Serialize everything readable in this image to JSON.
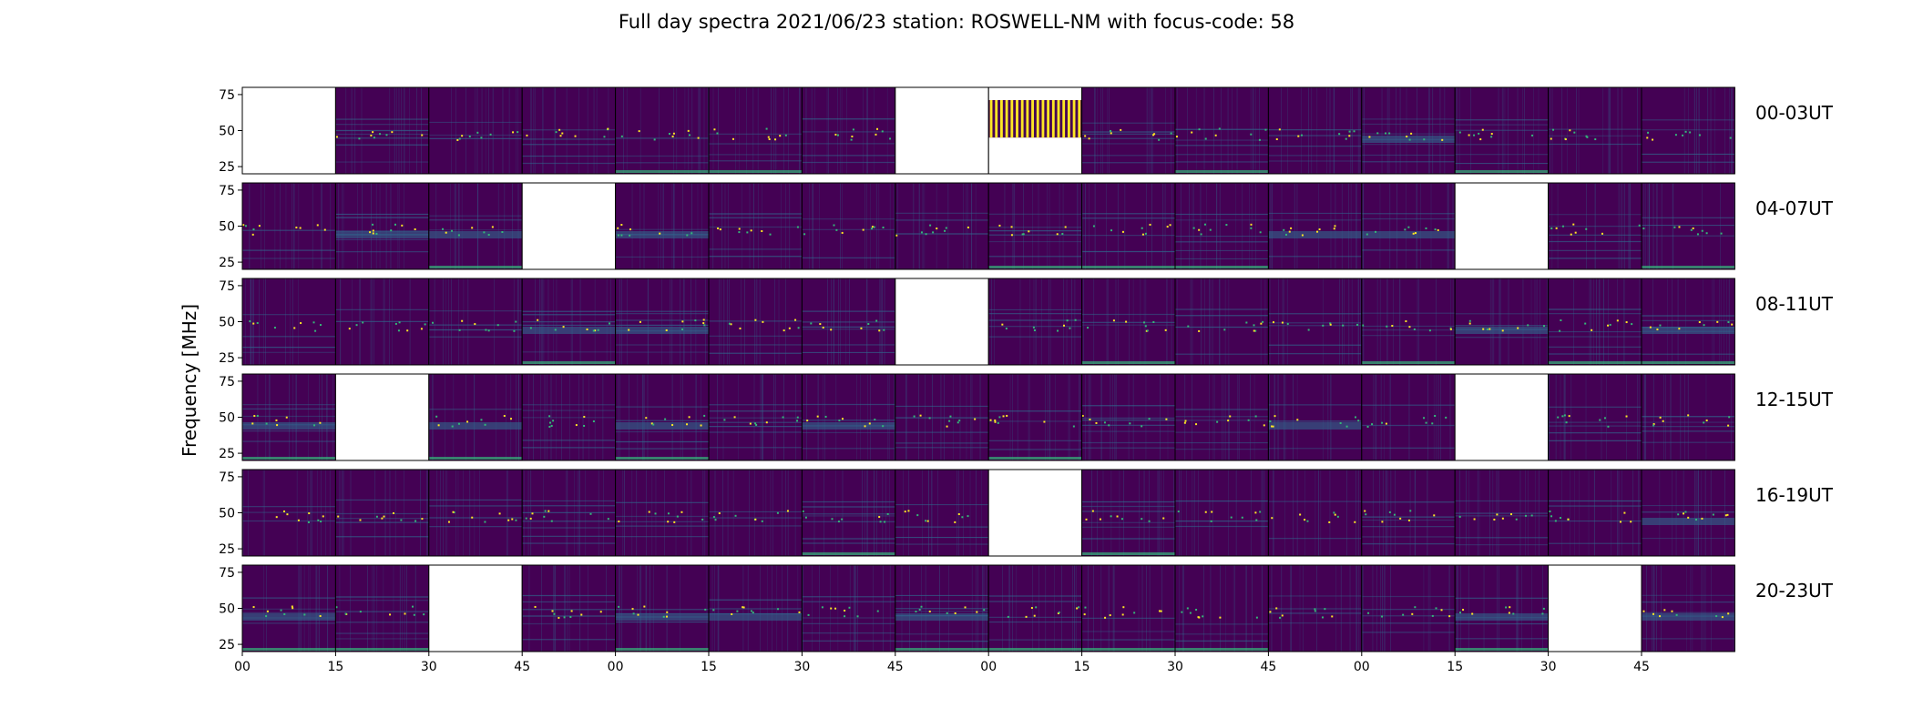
{
  "chart_data": {
    "type": "heatmap",
    "title": "Full day spectra 2021/06/23 station: ROSWELL-NM with focus-code: 58",
    "ylabel": "Frequency [MHz]",
    "y_ticks": [
      "75",
      "50",
      "25"
    ],
    "x_ticks": [
      "00",
      "15",
      "30",
      "45",
      "00",
      "15",
      "30",
      "45",
      "00",
      "15",
      "30",
      "45",
      "00",
      "15",
      "30",
      "45"
    ],
    "colormap": "viridis",
    "colors": {
      "background": "#440154",
      "mid": "#31688e",
      "teal": "#35b779",
      "high": "#fde725"
    },
    "rows": [
      {
        "label": "00-03UT",
        "panels": [
          "missing",
          "data",
          "data",
          "data",
          "data",
          "data",
          "data",
          "missing",
          "striped",
          "data",
          "data",
          "data",
          "data",
          "data",
          "data",
          "data"
        ]
      },
      {
        "label": "04-07UT",
        "panels": [
          "data",
          "data",
          "data",
          "missing",
          "data",
          "data",
          "data",
          "data",
          "data",
          "data",
          "data",
          "data",
          "data",
          "missing",
          "data",
          "data"
        ]
      },
      {
        "label": "08-11UT",
        "panels": [
          "data",
          "data",
          "data",
          "data",
          "data",
          "data",
          "data",
          "missing",
          "data",
          "data",
          "data",
          "data",
          "data",
          "data",
          "data",
          "data"
        ]
      },
      {
        "label": "12-15UT",
        "panels": [
          "data",
          "missing",
          "data",
          "data",
          "data",
          "data",
          "data",
          "data",
          "data",
          "data",
          "data",
          "data",
          "data",
          "missing",
          "data",
          "data"
        ]
      },
      {
        "label": "16-19UT",
        "panels": [
          "data",
          "data",
          "data",
          "data",
          "data",
          "data",
          "data",
          "data",
          "missing",
          "data",
          "data",
          "data",
          "data",
          "data",
          "data",
          "data"
        ]
      },
      {
        "label": "20-23UT",
        "panels": [
          "data",
          "data",
          "missing",
          "data",
          "data",
          "data",
          "data",
          "data",
          "data",
          "data",
          "data",
          "data",
          "data",
          "data",
          "missing",
          "data"
        ]
      }
    ]
  }
}
